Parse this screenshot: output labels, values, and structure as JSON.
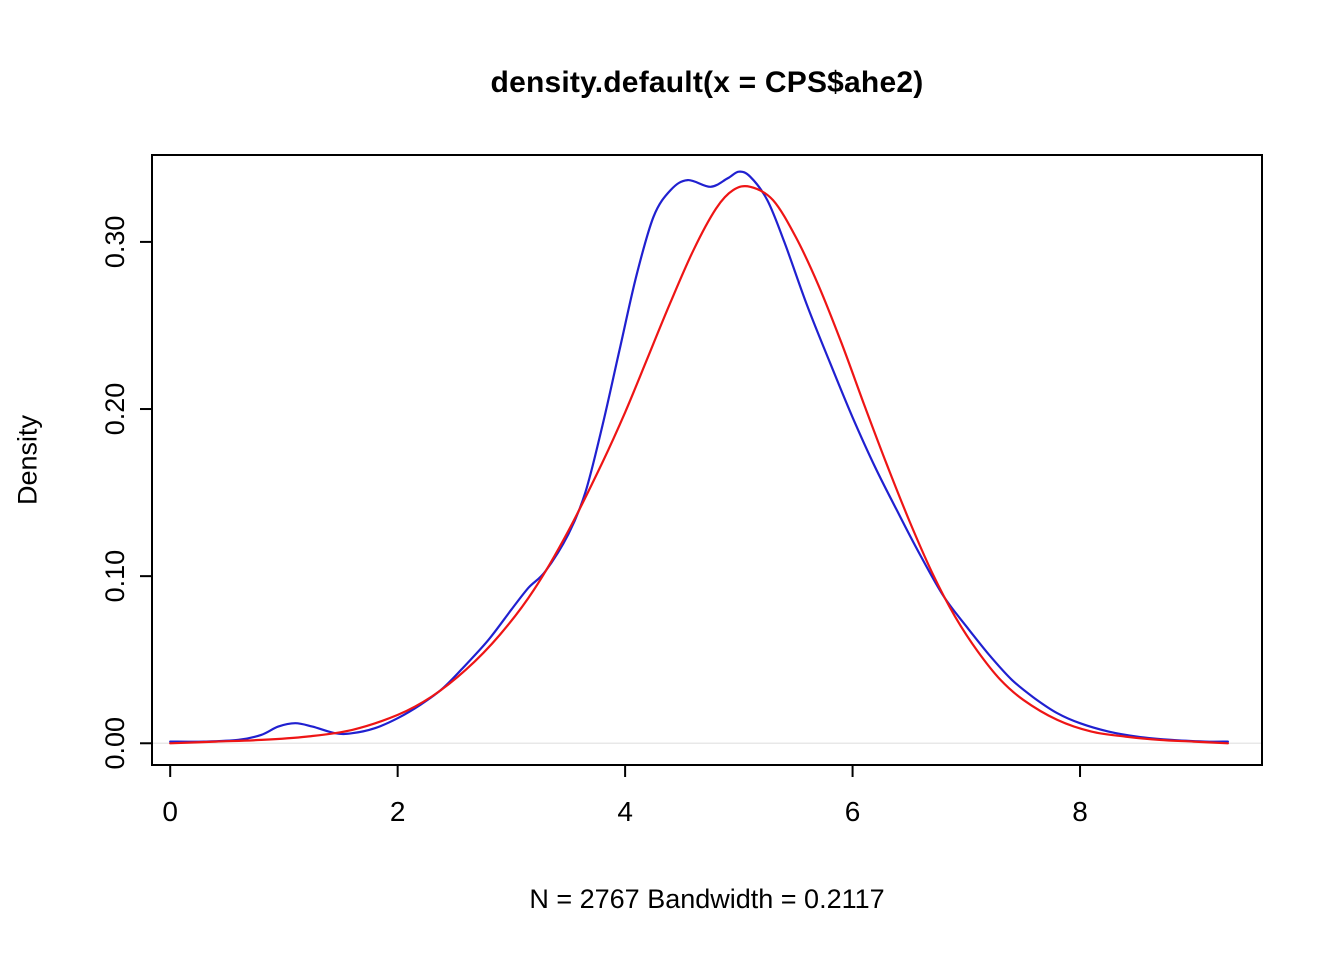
{
  "chart_data": {
    "type": "line",
    "title": "density.default(x = CPS$ahe2)",
    "xlabel": "N = 2767   Bandwidth = 0.2117",
    "ylabel": "Density",
    "xlim": [
      -0.16,
      9.6
    ],
    "ylim": [
      -0.013,
      0.352
    ],
    "xticks": [
      0,
      2,
      4,
      6,
      8
    ],
    "xtick_labels": [
      "0",
      "2",
      "4",
      "6",
      "8"
    ],
    "yticks": [
      0,
      0.1,
      0.2,
      0.3
    ],
    "ytick_labels": [
      "0.00",
      "0.10",
      "0.20",
      "0.30"
    ],
    "grid": false,
    "legend": "none",
    "zero_line": true,
    "zero_line_color": "#e8e8e8",
    "axis_color": "#000000",
    "series": [
      {
        "name": "kernel-density-estimate",
        "color": "#2020d0",
        "line_width": 2.2,
        "x": [
          0.0,
          0.3,
          0.6,
          0.8,
          0.95,
          1.1,
          1.25,
          1.45,
          1.6,
          1.8,
          2.0,
          2.2,
          2.4,
          2.6,
          2.8,
          3.0,
          3.15,
          3.3,
          3.5,
          3.65,
          3.8,
          3.95,
          4.1,
          4.25,
          4.4,
          4.55,
          4.75,
          4.9,
          5.0,
          5.1,
          5.25,
          5.4,
          5.6,
          5.8,
          6.0,
          6.2,
          6.4,
          6.6,
          6.8,
          7.0,
          7.2,
          7.4,
          7.6,
          7.8,
          8.0,
          8.25,
          8.5,
          8.8,
          9.1,
          9.3
        ],
        "y": [
          0.001,
          0.001,
          0.002,
          0.005,
          0.01,
          0.012,
          0.01,
          0.006,
          0.006,
          0.009,
          0.015,
          0.023,
          0.033,
          0.047,
          0.062,
          0.08,
          0.093,
          0.103,
          0.125,
          0.15,
          0.19,
          0.235,
          0.28,
          0.315,
          0.331,
          0.337,
          0.333,
          0.338,
          0.342,
          0.339,
          0.325,
          0.3,
          0.262,
          0.228,
          0.195,
          0.165,
          0.138,
          0.112,
          0.088,
          0.07,
          0.053,
          0.038,
          0.027,
          0.018,
          0.012,
          0.007,
          0.004,
          0.002,
          0.001,
          0.001
        ]
      },
      {
        "name": "normal-fit",
        "color": "#ee1515",
        "line_width": 2.2,
        "x": [
          0.0,
          0.4,
          0.8,
          1.2,
          1.6,
          2.0,
          2.3,
          2.6,
          2.9,
          3.2,
          3.5,
          3.8,
          4.0,
          4.2,
          4.4,
          4.6,
          4.8,
          4.95,
          5.1,
          5.3,
          5.5,
          5.7,
          5.9,
          6.1,
          6.3,
          6.5,
          6.7,
          6.9,
          7.1,
          7.3,
          7.5,
          7.8,
          8.1,
          8.4,
          8.7,
          9.0,
          9.3
        ],
        "y": [
          0.0,
          0.001,
          0.002,
          0.004,
          0.008,
          0.017,
          0.028,
          0.044,
          0.065,
          0.092,
          0.127,
          0.168,
          0.198,
          0.231,
          0.264,
          0.295,
          0.32,
          0.331,
          0.333,
          0.325,
          0.303,
          0.274,
          0.24,
          0.203,
          0.167,
          0.133,
          0.102,
          0.076,
          0.055,
          0.038,
          0.026,
          0.014,
          0.007,
          0.004,
          0.002,
          0.001,
          0.0
        ]
      }
    ]
  }
}
